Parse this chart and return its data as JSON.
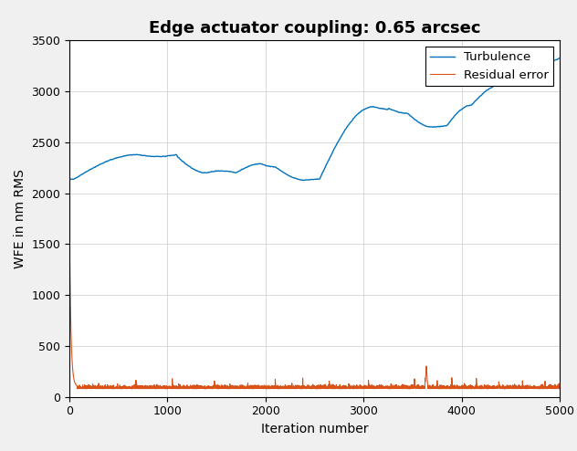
{
  "title": "Edge actuator coupling: 0.65 arcsec",
  "xlabel": "Iteration number",
  "ylabel": "WFE in nm RMS",
  "xlim": [
    0,
    5000
  ],
  "ylim": [
    0,
    3500
  ],
  "yticks": [
    0,
    500,
    1000,
    1500,
    2000,
    2500,
    3000,
    3500
  ],
  "xticks": [
    0,
    1000,
    2000,
    3000,
    4000,
    5000
  ],
  "turbulence_color": "#0072BD",
  "residual_color": "#D95319",
  "legend_labels": [
    "Turbulence",
    "Residual error"
  ],
  "title_fontsize": 13,
  "label_fontsize": 10,
  "tick_fontsize": 9,
  "legend_fontsize": 9.5,
  "bg_color": "#F0F0F0",
  "plot_bg_color": "#FFFFFF"
}
